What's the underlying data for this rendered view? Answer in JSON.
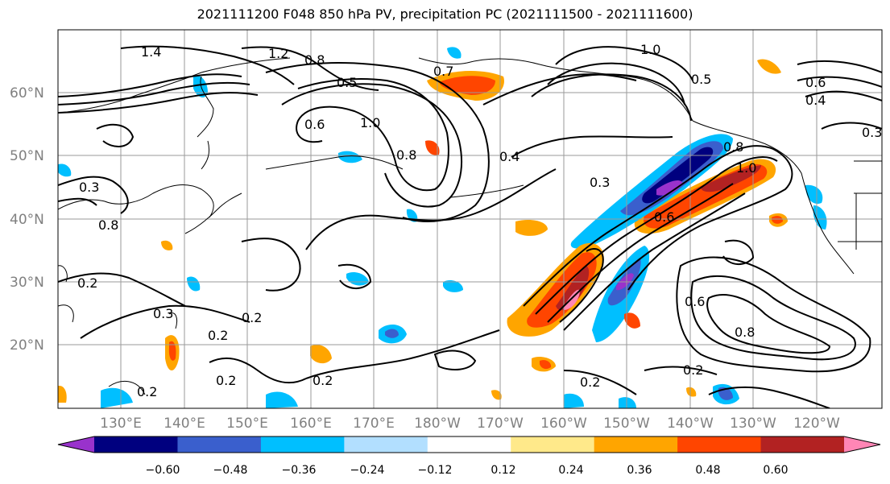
{
  "title": "2021111200 F048 850 hPa PV, precipitation PC (2021111500 - 2021111600)",
  "lat_labels": [
    "60°N",
    "50°N",
    "40°N",
    "30°N",
    "20°N"
  ],
  "lon_labels": [
    "130°E",
    "140°E",
    "150°E",
    "160°E",
    "170°E",
    "180°W",
    "170°W",
    "160°W",
    "150°W",
    "140°W",
    "130°W",
    "120°W"
  ],
  "contour_labels": [
    "1.4",
    "1.2",
    "0.8",
    "0.7",
    "0.5",
    "1.0",
    "0.5",
    "1.0",
    "0.8",
    "0.4",
    "0.3",
    "0.8",
    "0.6",
    "1.0",
    "0.6",
    "0.3",
    "0.2",
    "0.3",
    "0.2",
    "0.2",
    "0.2",
    "0.2",
    "0.2",
    "0.2",
    "0.2",
    "0.6",
    "0.8",
    "0.4",
    "0.6",
    "0.8",
    "0.3"
  ],
  "colorbar": {
    "ticks": [
      "−0.60",
      "−0.48",
      "−0.36",
      "−0.24",
      "−0.12",
      "0.12",
      "0.24",
      "0.36",
      "0.48",
      "0.60"
    ],
    "colors": [
      "#9932CC",
      "#00007F",
      "#3A5FCD",
      "#00BFFF",
      "#B2DFFF",
      "#FFFFFF",
      "#FFE98A",
      "#FFA500",
      "#FF4500",
      "#B22222",
      "#FF86B5"
    ]
  }
}
